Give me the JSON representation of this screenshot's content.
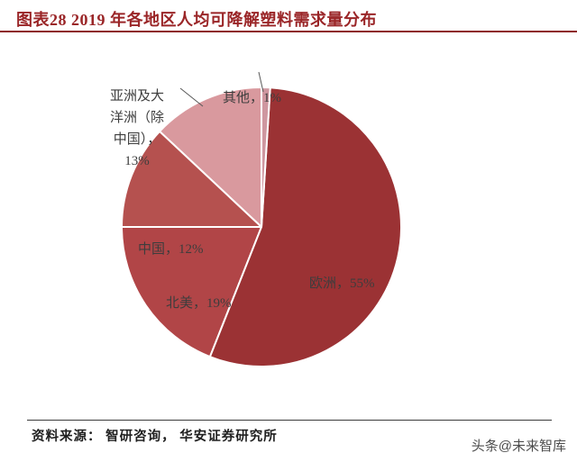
{
  "header": {
    "title": "图表28 2019 年各地区人均可降解塑料需求量分布",
    "accent_color": "#9a2527"
  },
  "chart_data": {
    "type": "pie",
    "title": "2019 年各地区人均可降解塑料需求量分布",
    "unit": "percent",
    "start_angle_deg": 0,
    "direction": "clockwise",
    "legend": "none",
    "label_style": "category-and-percent",
    "slices": [
      {
        "name": "其他",
        "value": 1,
        "label": "其他，1%",
        "color": "#cf97a0"
      },
      {
        "name": "欧洲",
        "value": 55,
        "label": "欧洲，55%",
        "color": "#9b3234"
      },
      {
        "name": "北美",
        "value": 19,
        "label": "北美，19%",
        "color": "#b14547"
      },
      {
        "name": "中国",
        "value": 12,
        "label": "中国，12%",
        "color": "#b5514f"
      },
      {
        "name": "亚洲及大洋洲（除中国）",
        "value": 13,
        "label": "亚洲及大\n洋洲（除\n中国），\n13%",
        "color": "#d9999e"
      }
    ]
  },
  "footer": {
    "source": "资料来源：  智研咨询，  华安证券研究所",
    "watermark": "头条@未来智库"
  }
}
